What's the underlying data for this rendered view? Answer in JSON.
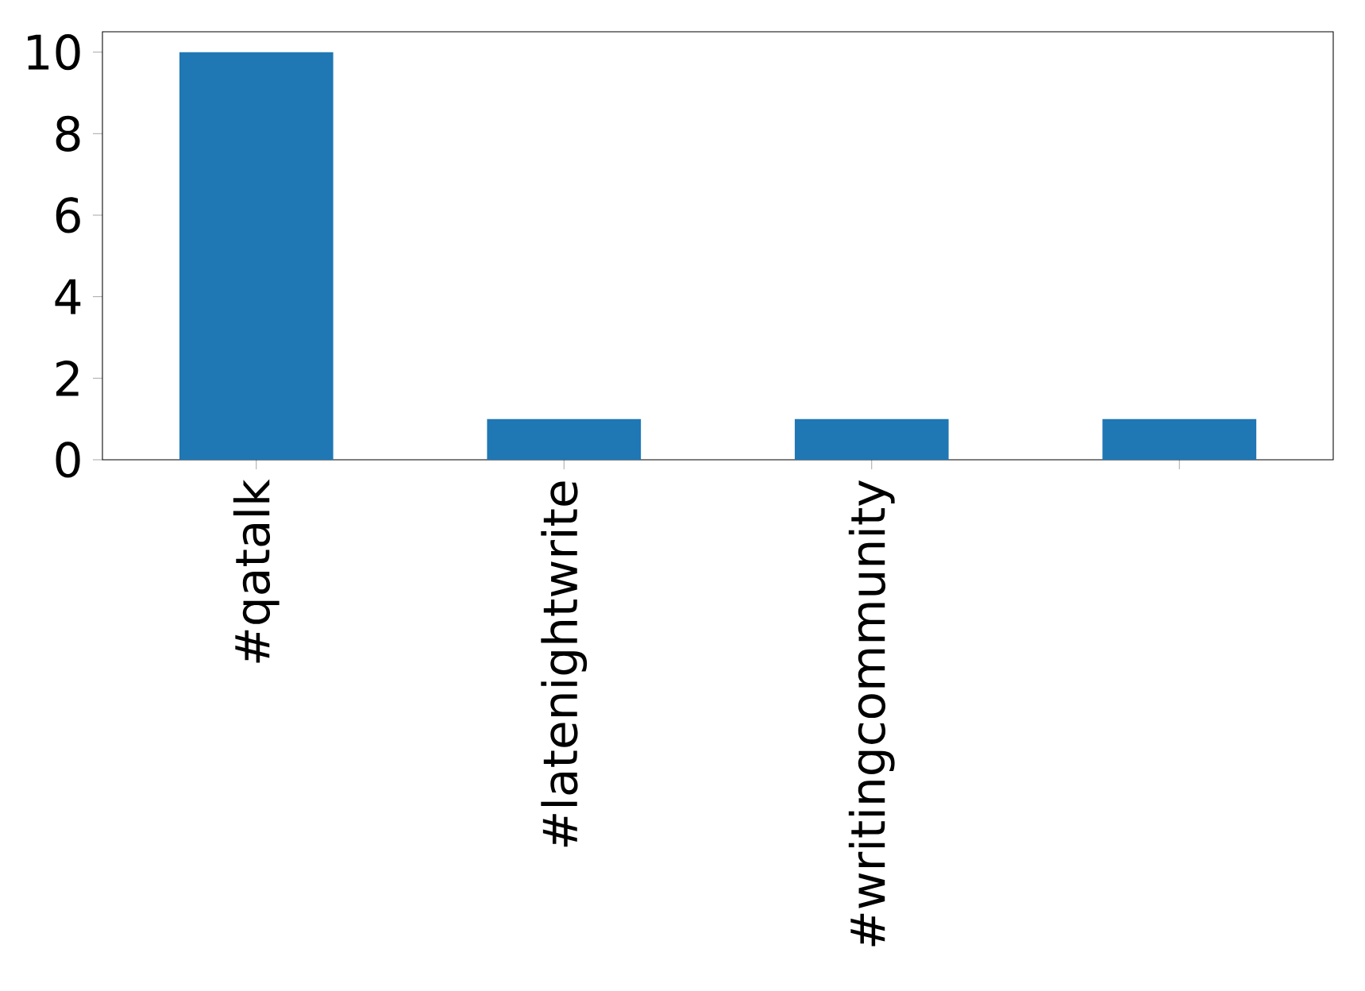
{
  "chart_data": {
    "type": "bar",
    "categories": [
      "#qatalk",
      "#latenightwrite",
      "#writingcommunity",
      null
    ],
    "values": [
      10,
      1,
      1,
      1
    ],
    "color": "#1f77b4",
    "ylim": [
      0,
      10.5
    ],
    "yticks": [
      0,
      2,
      4,
      6,
      8,
      10
    ]
  }
}
